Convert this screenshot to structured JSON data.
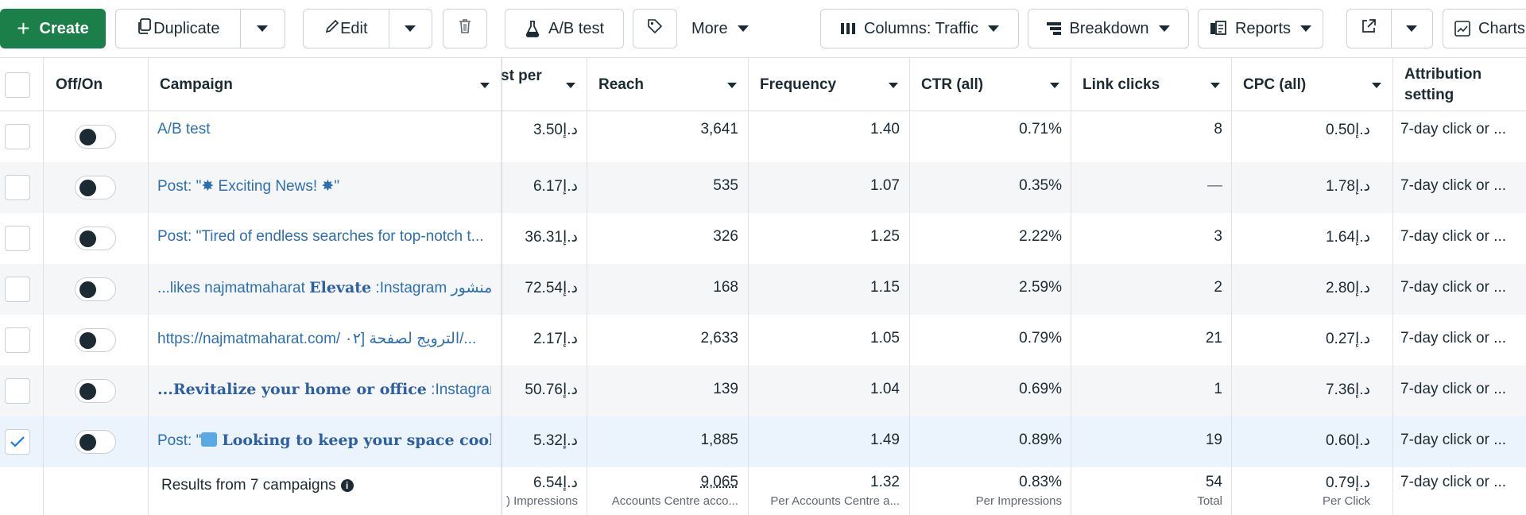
{
  "toolbar": {
    "create_label": "Create",
    "duplicate_label": "Duplicate",
    "edit_label": "Edit",
    "ab_test_label": "A/B test",
    "more_label": "More",
    "columns_label": "Columns: Traffic",
    "breakdown_label": "Breakdown",
    "reports_label": "Reports",
    "charts_label": "Charts"
  },
  "table": {
    "headers": {
      "off_on": "Off/On",
      "campaign": "Campaign",
      "cost_per": "st per",
      "reach": "Reach",
      "frequency": "Frequency",
      "ctr": "CTR (all)",
      "link_clicks": "Link clicks",
      "cpc": "CPC (all)",
      "attribution_line1": "Attribution",
      "attribution_line2": "setting"
    },
    "rows": [
      {
        "campaign": "A/B test",
        "cost": "3.50د.إ",
        "reach": "3,641",
        "frequency": "1.40",
        "ctr": "0.71%",
        "clicks": "8",
        "cpc": "0.50د.إ",
        "attribution": "7-day click or ...",
        "checked": false
      },
      {
        "campaign": "Post: \"✸ Exciting News! ✸\"",
        "cost": "6.17د.إ",
        "reach": "535",
        "frequency": "1.07",
        "ctr": "0.35%",
        "clicks": "—",
        "cpc": "1.78د.إ",
        "attribution": "7-day click or ...",
        "checked": false
      },
      {
        "campaign": "Post: \"Tired of endless searches for top-notch t...",
        "cost": "36.31د.إ",
        "reach": "326",
        "frequency": "1.25",
        "ctr": "2.22%",
        "clicks": "3",
        "cpc": "1.64د.إ",
        "attribution": "7-day click or ...",
        "checked": false
      },
      {
        "campaign_prefix": "...likes najmatmaharat ",
        "campaign_bold": "Elevate",
        "campaign_suffix": " :Instagram منشور",
        "cost": "72.54د.إ",
        "reach": "168",
        "frequency": "1.15",
        "ctr": "2.59%",
        "clicks": "2",
        "cpc": "2.80د.إ",
        "attribution": "7-day click or ...",
        "checked": false
      },
      {
        "campaign": "https://najmatmaharat.com/ الترويج لصفحة [٠٢/...",
        "cost": "2.17د.إ",
        "reach": "2,633",
        "frequency": "1.05",
        "ctr": "0.79%",
        "clicks": "21",
        "cpc": "0.27د.إ",
        "attribution": "7-day click or ...",
        "checked": false
      },
      {
        "campaign_bold": "...Revitalize your home or office",
        "campaign_suffix": " :Instagram ر",
        "cost": "50.76د.إ",
        "reach": "139",
        "frequency": "1.04",
        "ctr": "0.69%",
        "clicks": "1",
        "cpc": "7.36د.إ",
        "attribution": "7-day click or ...",
        "checked": false
      },
      {
        "campaign_prefix": "Post: \"",
        "campaign_bold": "Looking to keep your space cool a...",
        "cost": "5.32د.إ",
        "reach": "1,885",
        "frequency": "1.49",
        "ctr": "0.89%",
        "clicks": "19",
        "cpc": "0.60د.إ",
        "attribution": "7-day click or ...",
        "checked": true
      }
    ],
    "summary": {
      "label": "Results from 7 campaigns",
      "cost": "6.54د.إ",
      "cost_sub": ") Impressions",
      "reach": "9,065",
      "reach_sub": "Accounts Centre acco...",
      "frequency": "1.32",
      "frequency_sub": "Per Accounts Centre a...",
      "ctr": "0.83%",
      "ctr_sub": "Per Impressions",
      "clicks": "54",
      "clicks_sub": "Total",
      "cpc": "0.79د.إ",
      "cpc_sub": "Per Click",
      "attribution": "7-day click or ..."
    }
  },
  "colors": {
    "create_green": "#1a7f49",
    "link_blue": "#2d6fb3",
    "selected_row": "#ebf3fc",
    "check_blue": "#1877f2"
  }
}
